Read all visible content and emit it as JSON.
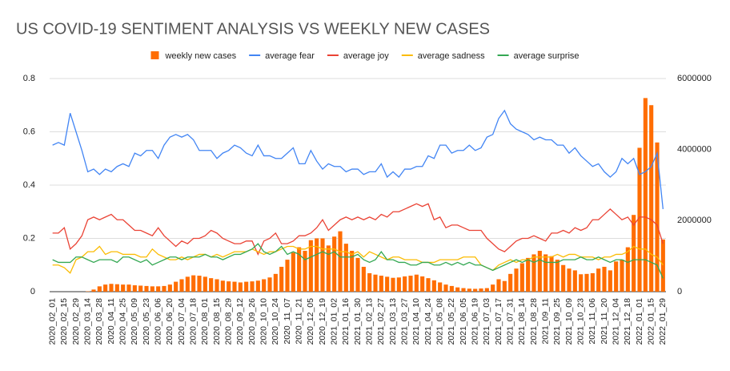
{
  "chart_data": {
    "type": "combo",
    "title": "US COVID-19 SENTIMENT ANALYSIS VS WEEKLY NEW CASES",
    "categories": [
      "2020_02_01",
      null,
      "2020_02_15",
      null,
      "2020_02_29",
      null,
      "2020_03_14",
      null,
      "2020_03_28",
      null,
      "2020_04_11",
      null,
      "2020_04_25",
      null,
      "2020_05_09",
      null,
      "2020_05_23",
      null,
      "2020_06_06",
      null,
      "2020_06_20",
      null,
      "2020_07_04",
      null,
      "2020_07_18",
      null,
      "2020_08_01",
      null,
      "2020_08_15",
      null,
      "2020_08_29",
      null,
      "2020_09_12",
      null,
      "2020_09_26",
      null,
      "2020_10_10",
      null,
      "2020_10_24",
      null,
      "2020_11_07",
      null,
      "2020_11_21",
      null,
      "2020_12_05",
      null,
      "2020_12_19",
      null,
      "2021_01_02",
      null,
      "2021_01_16",
      null,
      "2021_01_30",
      null,
      "2021_02_13",
      null,
      "2021_02_27",
      null,
      "2021_03_13",
      null,
      "2021_03_27",
      null,
      "2021_04_10",
      null,
      "2021_04_24",
      null,
      "2021_05_08",
      null,
      "2021_05_22",
      null,
      "2021_06_05",
      null,
      "2021_06_19",
      null,
      "2021_07_03",
      null,
      "2021_07_17",
      null,
      "2021_07_31",
      null,
      "2021_08_14",
      null,
      "2021_08_28",
      null,
      "2021_09_11",
      null,
      "2021_09_25",
      null,
      "2021_10_09",
      null,
      "2021_10_23",
      null,
      "2021_11_06",
      null,
      "2021_11_20",
      null,
      "2021_12_04",
      null,
      "2021_12_18",
      null,
      "2022_01_01",
      null,
      "2022_01_15",
      null,
      "2022_01_29"
    ],
    "series": [
      {
        "name": "weekly new cases",
        "type": "bar",
        "axis": "y2",
        "color": "#ff6d01",
        "values": [
          0,
          0,
          0,
          0,
          0,
          0,
          10000,
          60000,
          150000,
          200000,
          220000,
          210000,
          200000,
          200000,
          180000,
          170000,
          160000,
          150000,
          150000,
          160000,
          200000,
          280000,
          350000,
          420000,
          460000,
          450000,
          420000,
          380000,
          350000,
          310000,
          290000,
          280000,
          260000,
          280000,
          290000,
          310000,
          350000,
          400000,
          500000,
          700000,
          900000,
          1100000,
          1250000,
          1150000,
          1450000,
          1500000,
          1500000,
          1300000,
          1550000,
          1700000,
          1350000,
          1150000,
          950000,
          700000,
          520000,
          480000,
          450000,
          420000,
          390000,
          400000,
          430000,
          450000,
          480000,
          430000,
          380000,
          320000,
          260000,
          200000,
          160000,
          120000,
          100000,
          85000,
          80000,
          90000,
          100000,
          200000,
          350000,
          300000,
          500000,
          650000,
          800000,
          950000,
          1050000,
          1150000,
          1050000,
          1000000,
          900000,
          750000,
          650000,
          600000,
          490000,
          500000,
          520000,
          650000,
          700000,
          600000,
          850000,
          900000,
          1250000,
          2160000,
          4050000,
          5450000,
          5250000,
          4200000,
          1470000
        ]
      },
      {
        "name": "average fear",
        "type": "line",
        "color": "#4285f4",
        "values": [
          0.55,
          0.56,
          0.55,
          0.67,
          0.6,
          0.53,
          0.45,
          0.46,
          0.44,
          0.46,
          0.45,
          0.47,
          0.48,
          0.47,
          0.52,
          0.51,
          0.53,
          0.53,
          0.5,
          0.55,
          0.58,
          0.59,
          0.58,
          0.59,
          0.57,
          0.53,
          0.53,
          0.53,
          0.5,
          0.52,
          0.53,
          0.55,
          0.54,
          0.52,
          0.51,
          0.55,
          0.51,
          0.51,
          0.5,
          0.5,
          0.52,
          0.54,
          0.48,
          0.48,
          0.53,
          0.49,
          0.46,
          0.48,
          0.47,
          0.47,
          0.45,
          0.46,
          0.46,
          0.44,
          0.45,
          0.45,
          0.48,
          0.43,
          0.45,
          0.43,
          0.46,
          0.46,
          0.47,
          0.47,
          0.51,
          0.5,
          0.55,
          0.55,
          0.52,
          0.53,
          0.53,
          0.55,
          0.53,
          0.54,
          0.58,
          0.59,
          0.65,
          0.68,
          0.63,
          0.61,
          0.6,
          0.59,
          0.57,
          0.58,
          0.57,
          0.57,
          0.55,
          0.55,
          0.52,
          0.54,
          0.51,
          0.49,
          0.47,
          0.48,
          0.45,
          0.43,
          0.45,
          0.5,
          0.48,
          0.5,
          0.44,
          0.45,
          0.47,
          0.52,
          0.31
        ]
      },
      {
        "name": "average joy",
        "type": "line",
        "color": "#ea4335",
        "values": [
          0.22,
          0.22,
          0.24,
          0.16,
          0.18,
          0.21,
          0.27,
          0.28,
          0.27,
          0.28,
          0.29,
          0.27,
          0.27,
          0.25,
          0.23,
          0.23,
          0.22,
          0.21,
          0.24,
          0.21,
          0.19,
          0.17,
          0.19,
          0.18,
          0.2,
          0.2,
          0.21,
          0.23,
          0.22,
          0.2,
          0.19,
          0.18,
          0.18,
          0.19,
          0.19,
          0.14,
          0.19,
          0.2,
          0.22,
          0.18,
          0.18,
          0.19,
          0.21,
          0.21,
          0.22,
          0.24,
          0.27,
          0.23,
          0.25,
          0.27,
          0.28,
          0.27,
          0.28,
          0.27,
          0.28,
          0.27,
          0.29,
          0.28,
          0.3,
          0.3,
          0.31,
          0.32,
          0.33,
          0.32,
          0.33,
          0.27,
          0.28,
          0.24,
          0.25,
          0.25,
          0.24,
          0.23,
          0.23,
          0.23,
          0.2,
          0.18,
          0.16,
          0.15,
          0.17,
          0.19,
          0.2,
          0.2,
          0.21,
          0.2,
          0.19,
          0.22,
          0.22,
          0.23,
          0.22,
          0.24,
          0.23,
          0.24,
          0.27,
          0.27,
          0.29,
          0.31,
          0.29,
          0.27,
          0.28,
          0.25,
          0.28,
          0.28,
          0.27,
          0.25,
          0.18
        ]
      },
      {
        "name": "average sadness",
        "type": "line",
        "color": "#fbbc04",
        "values": [
          0.1,
          0.1,
          0.09,
          0.07,
          0.12,
          0.13,
          0.15,
          0.15,
          0.17,
          0.14,
          0.15,
          0.15,
          0.14,
          0.14,
          0.14,
          0.13,
          0.13,
          0.16,
          0.14,
          0.13,
          0.12,
          0.12,
          0.13,
          0.12,
          0.13,
          0.14,
          0.14,
          0.13,
          0.14,
          0.13,
          0.14,
          0.15,
          0.15,
          0.15,
          0.16,
          0.15,
          0.14,
          0.15,
          0.15,
          0.16,
          0.17,
          0.17,
          0.16,
          0.16,
          0.17,
          0.17,
          0.16,
          0.16,
          0.16,
          0.15,
          0.15,
          0.14,
          0.15,
          0.13,
          0.15,
          0.14,
          0.13,
          0.12,
          0.13,
          0.13,
          0.12,
          0.12,
          0.12,
          0.11,
          0.11,
          0.11,
          0.12,
          0.12,
          0.12,
          0.12,
          0.13,
          0.13,
          0.13,
          0.1,
          0.09,
          0.08,
          0.1,
          0.11,
          0.12,
          0.11,
          0.12,
          0.12,
          0.13,
          0.13,
          0.13,
          0.13,
          0.14,
          0.13,
          0.14,
          0.14,
          0.13,
          0.13,
          0.13,
          0.12,
          0.13,
          0.13,
          0.14,
          0.14,
          0.15,
          0.17,
          0.16,
          0.16,
          0.14,
          0.13,
          0.1
        ]
      },
      {
        "name": "average surprise",
        "type": "line",
        "color": "#34a853",
        "values": [
          0.12,
          0.11,
          0.11,
          0.11,
          0.13,
          0.13,
          0.12,
          0.11,
          0.12,
          0.12,
          0.12,
          0.11,
          0.13,
          0.13,
          0.12,
          0.11,
          0.12,
          0.1,
          0.11,
          0.12,
          0.13,
          0.13,
          0.12,
          0.13,
          0.13,
          0.13,
          0.14,
          0.13,
          0.13,
          0.12,
          0.13,
          0.14,
          0.14,
          0.15,
          0.16,
          0.18,
          0.15,
          0.14,
          0.15,
          0.17,
          0.14,
          0.15,
          0.14,
          0.12,
          0.13,
          0.14,
          0.15,
          0.14,
          0.15,
          0.13,
          0.13,
          0.13,
          0.14,
          0.12,
          0.11,
          0.12,
          0.15,
          0.12,
          0.12,
          0.11,
          0.11,
          0.1,
          0.1,
          0.11,
          0.11,
          0.1,
          0.1,
          0.11,
          0.1,
          0.11,
          0.1,
          0.11,
          0.1,
          0.1,
          0.09,
          0.08,
          0.09,
          0.1,
          0.11,
          0.12,
          0.11,
          0.12,
          0.11,
          0.12,
          0.11,
          0.11,
          0.11,
          0.12,
          0.12,
          0.12,
          0.13,
          0.12,
          0.12,
          0.13,
          0.12,
          0.11,
          0.12,
          0.12,
          0.11,
          0.12,
          0.12,
          0.12,
          0.11,
          0.1,
          0.05
        ]
      }
    ],
    "ylim": [
      0,
      0.8
    ],
    "yticks": [
      0,
      0.2,
      0.4,
      0.6,
      0.8
    ],
    "y2lim": [
      0,
      6000000
    ],
    "y2ticks": [
      0,
      2000000,
      4000000,
      6000000
    ],
    "grid": true,
    "legend": "top"
  }
}
